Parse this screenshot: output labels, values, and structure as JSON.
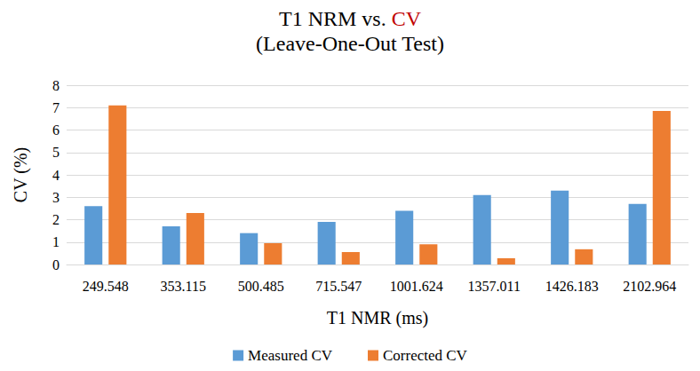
{
  "chart_data": {
    "type": "bar",
    "title": "T1 NRM vs. CV",
    "subtitle": "(Leave-One-Out Test)",
    "x_label": "T1 NMR (ms)",
    "y_label": "CV (%)",
    "categories": [
      "249.548",
      "353.115",
      "500.485",
      "715.547",
      "1001.624",
      "1357.011",
      "1426.183",
      "2102.964"
    ],
    "series": [
      {
        "name": "Measured CV",
        "color": "#5b9bd5",
        "values": [
          2.6,
          1.7,
          1.4,
          1.9,
          2.4,
          3.1,
          3.3,
          2.7
        ]
      },
      {
        "name": "Corrected CV",
        "color": "#ed7d31",
        "values": [
          7.1,
          2.3,
          0.95,
          0.55,
          0.9,
          0.28,
          0.68,
          6.85
        ]
      }
    ],
    "ylim": [
      0,
      8
    ],
    "yticks": [
      0,
      1,
      2,
      3,
      4,
      5,
      6,
      7,
      8
    ],
    "grid": true,
    "legend": "bottom"
  }
}
